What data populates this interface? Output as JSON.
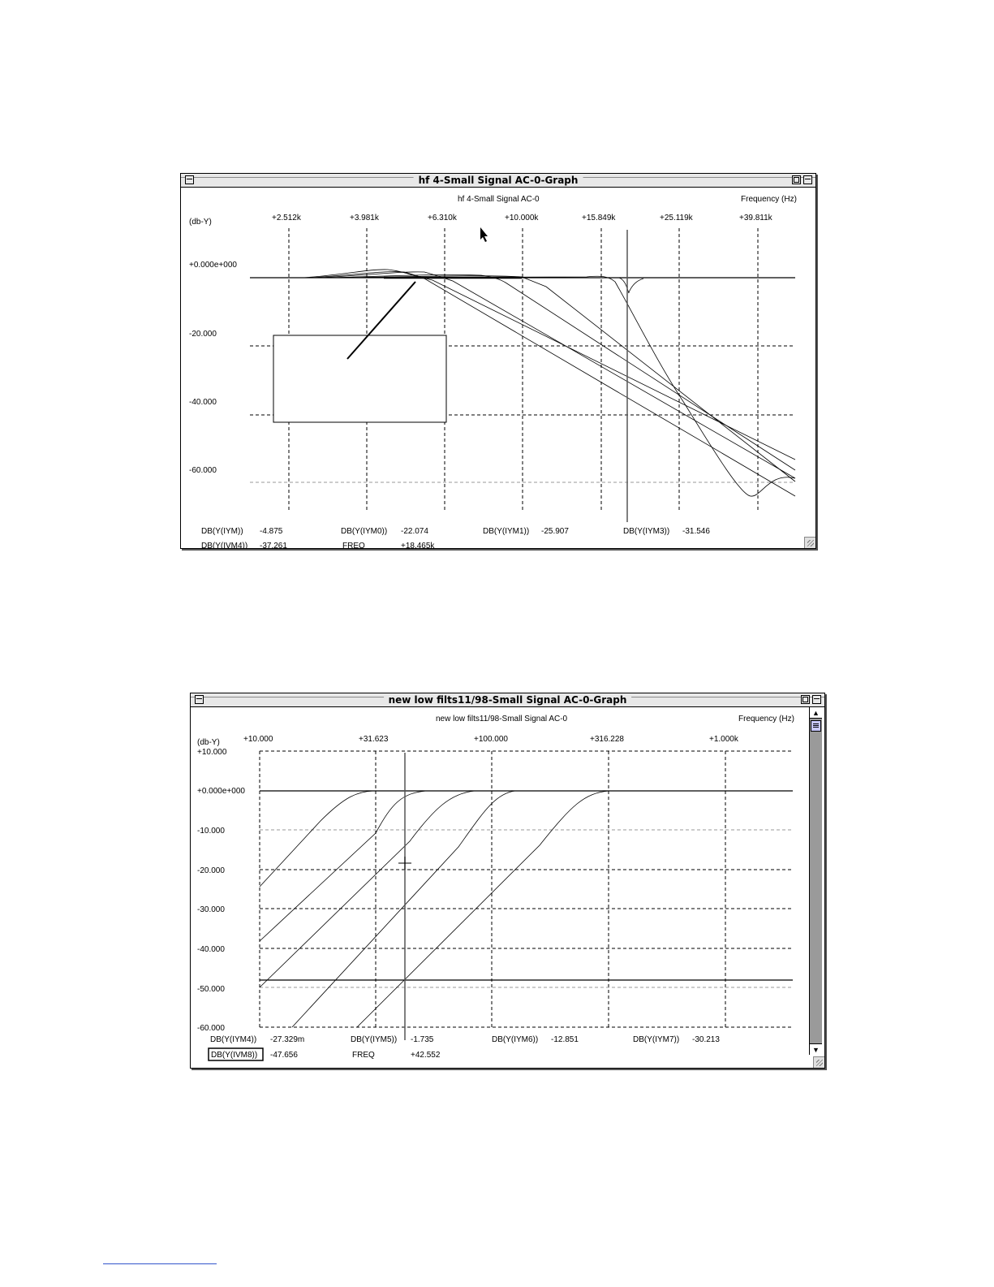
{
  "window1": {
    "title": "hf 4-Small Signal AC-0-Graph",
    "plot_title": "hf 4-Small Signal AC-0",
    "x_axis_label": "Frequency   (Hz)",
    "y_axis_label": "(db-Y)",
    "x_ticks": [
      "+2.512k",
      "+3.981k",
      "+6.310k",
      "+10.000k",
      "+15.849k",
      "+25.119k",
      "+39.811k"
    ],
    "y_ticks": [
      "+0.000e+000",
      "-20.000",
      "-40.000",
      "-60.000"
    ],
    "readouts": [
      {
        "label": "DB(Y(IYM))",
        "value": "-4.875"
      },
      {
        "label": "DB(Y(IYM0))",
        "value": "-22.074"
      },
      {
        "label": "DB(Y(IYM1))",
        "value": "-25.907"
      },
      {
        "label": "DB(Y(IYM3))",
        "value": "-31.546"
      },
      {
        "label": "DB(Y(IVM4))",
        "value": "-37.261"
      },
      {
        "label": "FREQ",
        "value": "+18.465k"
      }
    ]
  },
  "window2": {
    "title": "new low filts11/98-Small Signal AC-0-Graph",
    "plot_title": "new low filts11/98-Small Signal AC-0",
    "x_axis_label": "Frequency   (Hz)",
    "y_axis_label": "(db-Y)",
    "x_ticks": [
      "+10.000",
      "+31.623",
      "+100.000",
      "+316.228",
      "+1.000k"
    ],
    "y_ticks": [
      "+10.000",
      "+0.000e+000",
      "-10.000",
      "-20.000",
      "-30.000",
      "-40.000",
      "-50.000",
      "-60.000"
    ],
    "readouts": [
      {
        "label": "DB(Y(IYM4))",
        "value": "-27.329m"
      },
      {
        "label": "DB(Y(IYM5))",
        "value": "-1.735"
      },
      {
        "label": "DB(Y(IYM6))",
        "value": "-12.851"
      },
      {
        "label": "DB(Y(IYM7))",
        "value": "-30.213"
      },
      {
        "label": "DB(Y(IVM8))",
        "value": "-47.656"
      },
      {
        "label": "FREQ",
        "value": "+42.552"
      }
    ]
  }
}
